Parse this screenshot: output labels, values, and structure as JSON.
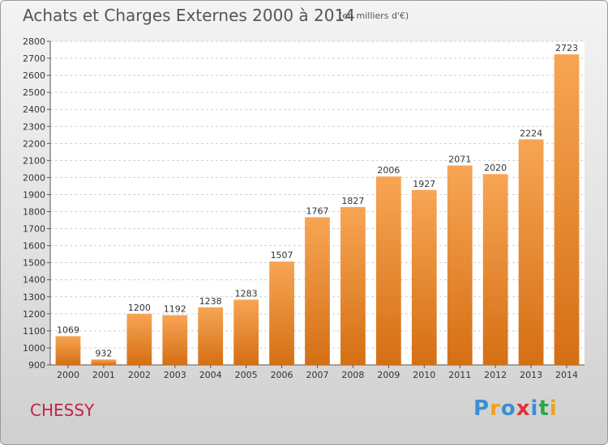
{
  "title": "Achats et Charges Externes 2000 à 2014",
  "subtitle": "(en milliers d'€)",
  "commune": "CHESSY",
  "logo": {
    "letters": [
      "P",
      "r",
      "o",
      "x",
      "i",
      "t",
      "i"
    ],
    "colors": [
      "#3a8fd6",
      "#f0a020",
      "#3a8fd6",
      "#e0303a",
      "#3a8fd6",
      "#2aa848",
      "#f0a020"
    ]
  },
  "chart_data": {
    "type": "bar",
    "title": "Achats et Charges Externes 2000 à 2014",
    "subtitle": "(en milliers d'€)",
    "categories": [
      "2000",
      "2001",
      "2002",
      "2003",
      "2004",
      "2005",
      "2006",
      "2007",
      "2008",
      "2009",
      "2010",
      "2011",
      "2012",
      "2013",
      "2014"
    ],
    "values": [
      1069,
      932,
      1200,
      1192,
      1238,
      1283,
      1507,
      1767,
      1827,
      2006,
      1927,
      2071,
      2020,
      2224,
      2723
    ],
    "ylim": [
      900,
      2800
    ],
    "yticks": [
      900,
      1000,
      1100,
      1200,
      1300,
      1400,
      1500,
      1600,
      1700,
      1800,
      1900,
      2000,
      2100,
      2200,
      2300,
      2400,
      2500,
      2600,
      2700,
      2800
    ],
    "grid": true,
    "bar_color": "#ef8a2c"
  }
}
